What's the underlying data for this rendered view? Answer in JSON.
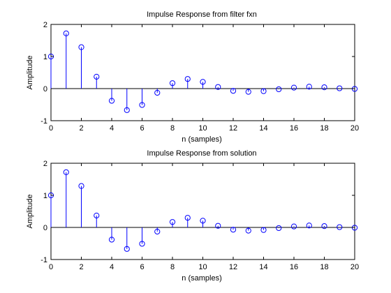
{
  "figure": {
    "background": "#ffffff"
  },
  "style": {
    "stem_color": "#0000ff",
    "axis_color": "#000000"
  },
  "chart_data": [
    {
      "type": "stem",
      "title": "Impulse Response from filter fxn",
      "xlabel": "n (samples)",
      "ylabel": "Amplitude",
      "xlim": [
        0,
        20
      ],
      "ylim": [
        -1,
        2
      ],
      "xticks": [
        0,
        2,
        4,
        6,
        8,
        10,
        12,
        14,
        16,
        18,
        20
      ],
      "yticks": [
        -1,
        0,
        1,
        2
      ],
      "grid": false,
      "baseline": 0,
      "x": [
        0,
        1,
        2,
        3,
        4,
        5,
        6,
        7,
        8,
        9,
        10,
        11,
        12,
        13,
        14,
        15,
        16,
        17,
        18,
        19,
        20
      ],
      "y": [
        1.0,
        1.72,
        1.29,
        0.37,
        -0.38,
        -0.67,
        -0.51,
        -0.13,
        0.17,
        0.3,
        0.21,
        0.05,
        -0.07,
        -0.1,
        -0.08,
        -0.02,
        0.03,
        0.06,
        0.04,
        0.01,
        -0.01
      ]
    },
    {
      "type": "stem",
      "title": "Impulse Response from solution",
      "xlabel": "n (samples)",
      "ylabel": "Amplitude",
      "xlim": [
        0,
        20
      ],
      "ylim": [
        -1,
        2
      ],
      "xticks": [
        0,
        2,
        4,
        6,
        8,
        10,
        12,
        14,
        16,
        18,
        20
      ],
      "yticks": [
        -1,
        0,
        1,
        2
      ],
      "grid": false,
      "baseline": 0,
      "x": [
        0,
        1,
        2,
        3,
        4,
        5,
        6,
        7,
        8,
        9,
        10,
        11,
        12,
        13,
        14,
        15,
        16,
        17,
        18,
        19,
        20
      ],
      "y": [
        1.0,
        1.72,
        1.29,
        0.37,
        -0.38,
        -0.67,
        -0.51,
        -0.13,
        0.17,
        0.3,
        0.21,
        0.05,
        -0.07,
        -0.1,
        -0.08,
        -0.02,
        0.03,
        0.06,
        0.04,
        0.01,
        -0.01
      ]
    }
  ]
}
